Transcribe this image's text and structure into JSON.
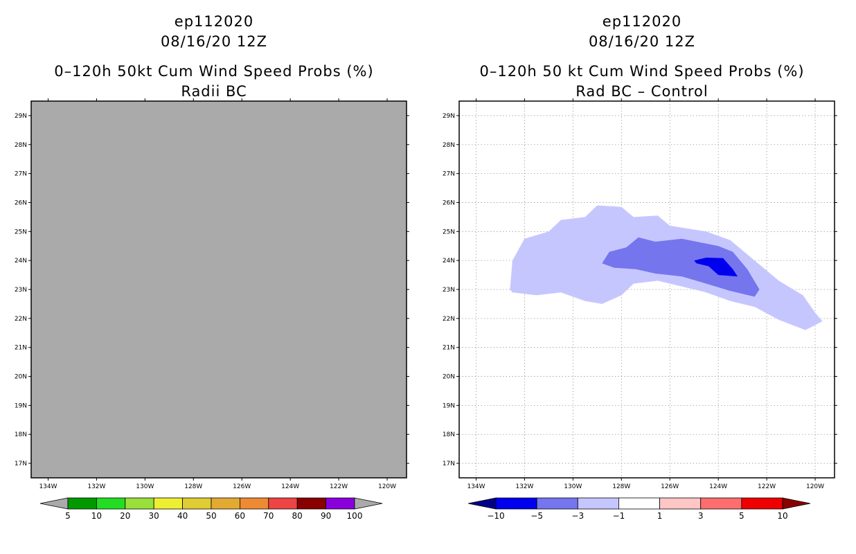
{
  "chart_data": [
    {
      "type": "heatmap",
      "title_lines": [
        "ep112020",
        "08/16/20 12Z",
        "0–120h 50kt Cum Wind Speed Probs (%)",
        "Radii BC"
      ],
      "lon_ticks": [
        "134W",
        "132W",
        "130W",
        "128W",
        "126W",
        "124W",
        "122W",
        "120W"
      ],
      "lat_ticks": [
        "29N",
        "28N",
        "27N",
        "26N",
        "25N",
        "24N",
        "23N",
        "22N",
        "21N",
        "20N",
        "19N",
        "18N",
        "17N"
      ],
      "lon_range": [
        -134.7,
        -119.2
      ],
      "lat_range": [
        16.5,
        29.5
      ],
      "field": "no data (all gray)",
      "background_color": "#aaaaaa",
      "colorbar": {
        "labels": [
          "5",
          "10",
          "20",
          "30",
          "40",
          "50",
          "60",
          "70",
          "80",
          "90",
          "100"
        ],
        "colors": [
          "#aaaaaa",
          "#009900",
          "#22dd22",
          "#99e03a",
          "#eeee33",
          "#e0cc33",
          "#e3aa33",
          "#ee8a33",
          "#ee4444",
          "#880000",
          "#8a00dd",
          "#aaaaaa"
        ]
      }
    },
    {
      "type": "heatmap",
      "title_lines": [
        "ep112020",
        "08/16/20 12Z",
        "0–120h 50 kt Cum Wind Speed Probs (%)",
        "Rad BC – Control"
      ],
      "lon_ticks": [
        "134W",
        "132W",
        "130W",
        "128W",
        "126W",
        "124W",
        "122W",
        "120W"
      ],
      "lat_ticks": [
        "29N",
        "28N",
        "27N",
        "26N",
        "25N",
        "24N",
        "23N",
        "22N",
        "21N",
        "20N",
        "19N",
        "18N",
        "17N"
      ],
      "lon_range": [
        -134.7,
        -119.2
      ],
      "lat_range": [
        16.5,
        29.5
      ],
      "grid": true,
      "contours": [
        {
          "name": "-3 to -1",
          "color": "#c6c6ff",
          "points": [
            [
              -132.6,
              23.0
            ],
            [
              -132.5,
              24.0
            ],
            [
              -132.0,
              24.75
            ],
            [
              -131.0,
              25.0
            ],
            [
              -130.5,
              25.4
            ],
            [
              -129.5,
              25.5
            ],
            [
              -129.0,
              25.9
            ],
            [
              -128.0,
              25.85
            ],
            [
              -127.5,
              25.5
            ],
            [
              -126.5,
              25.55
            ],
            [
              -126.0,
              25.2
            ],
            [
              -124.5,
              25.0
            ],
            [
              -123.5,
              24.7
            ],
            [
              -122.5,
              24.0
            ],
            [
              -121.5,
              23.3
            ],
            [
              -120.5,
              22.8
            ],
            [
              -120.0,
              22.2
            ],
            [
              -119.7,
              21.9
            ],
            [
              -120.4,
              21.6
            ],
            [
              -121.5,
              21.95
            ],
            [
              -122.5,
              22.4
            ],
            [
              -123.5,
              22.6
            ],
            [
              -124.5,
              22.9
            ],
            [
              -125.5,
              23.1
            ],
            [
              -126.5,
              23.3
            ],
            [
              -127.5,
              23.2
            ],
            [
              -128.0,
              22.8
            ],
            [
              -128.8,
              22.5
            ],
            [
              -129.5,
              22.6
            ],
            [
              -130.5,
              22.9
            ],
            [
              -131.5,
              22.8
            ],
            [
              -132.5,
              22.9
            ]
          ]
        },
        {
          "name": "-5 to -3",
          "color": "#7575ee",
          "points": [
            [
              -128.8,
              23.9
            ],
            [
              -128.5,
              24.3
            ],
            [
              -127.8,
              24.45
            ],
            [
              -127.3,
              24.8
            ],
            [
              -126.6,
              24.65
            ],
            [
              -125.5,
              24.75
            ],
            [
              -124.0,
              24.5
            ],
            [
              -123.4,
              24.3
            ],
            [
              -122.8,
              23.7
            ],
            [
              -122.3,
              23.0
            ],
            [
              -122.5,
              22.75
            ],
            [
              -123.5,
              22.95
            ],
            [
              -124.5,
              23.2
            ],
            [
              -125.5,
              23.45
            ],
            [
              -126.6,
              23.55
            ],
            [
              -127.4,
              23.7
            ],
            [
              -128.3,
              23.75
            ]
          ]
        },
        {
          "name": "-10 to -5",
          "color": "#0000ee",
          "points": [
            [
              -125.0,
              24.0
            ],
            [
              -124.5,
              24.1
            ],
            [
              -123.8,
              24.08
            ],
            [
              -123.4,
              23.7
            ],
            [
              -123.2,
              23.45
            ],
            [
              -124.0,
              23.5
            ],
            [
              -124.4,
              23.8
            ],
            [
              -124.9,
              23.9
            ]
          ]
        }
      ],
      "colorbar": {
        "labels": [
          "−10",
          "−5",
          "−3",
          "−1",
          "1",
          "3",
          "5",
          "10"
        ],
        "colors": [
          "#000088",
          "#0000ee",
          "#7575ee",
          "#c6c6ff",
          "#ffffff",
          "#ffc6c6",
          "#ff6e6e",
          "#ee0000",
          "#880000"
        ]
      }
    }
  ]
}
